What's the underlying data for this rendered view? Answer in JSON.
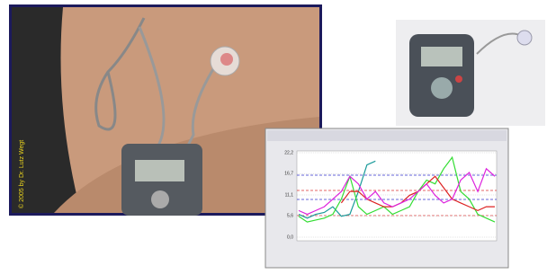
{
  "photo_caption": "© 2005 by Dr. Lutz Wegt",
  "chart_data": {
    "type": "line",
    "categories": [
      null,
      null,
      null,
      null,
      null,
      null,
      null,
      null,
      null,
      null,
      null,
      null,
      null,
      null,
      null,
      null,
      null,
      null,
      null,
      null,
      null,
      null,
      null,
      null
    ],
    "series": [
      {
        "color": "#1a9a9a",
        "values": [
          6,
          5,
          6,
          6.5,
          8,
          5.5,
          6,
          12,
          19,
          20,
          null,
          null,
          null,
          null,
          null,
          null,
          null,
          null,
          null,
          null,
          null,
          null,
          null,
          null
        ]
      },
      {
        "color": "#33dd33",
        "values": [
          5.5,
          4,
          4.5,
          5,
          6,
          10,
          16,
          8,
          6,
          7,
          8,
          6,
          7,
          8,
          12,
          15,
          14,
          18,
          21,
          12,
          10,
          6,
          5,
          4
        ]
      },
      {
        "color": "#dd2222",
        "values": [
          null,
          null,
          null,
          null,
          null,
          9,
          12,
          12,
          10,
          9,
          8,
          8,
          9,
          11,
          12,
          14,
          16,
          13,
          10,
          9,
          8,
          7,
          8,
          8
        ]
      },
      {
        "color": "#dd22dd",
        "values": [
          7,
          6,
          7,
          8,
          10,
          12,
          16,
          14,
          10,
          12,
          9,
          8,
          9,
          10,
          12,
          14,
          11,
          9,
          10,
          15,
          17,
          12,
          18,
          16
        ]
      }
    ],
    "ylim": [
      0,
      22.2
    ],
    "yticks": [
      {
        "value": 0,
        "label": "0,0"
      },
      {
        "value": 5.6,
        "label": "5,6"
      },
      {
        "value": 11.1,
        "label": "11,1"
      },
      {
        "value": 16.7,
        "label": "16,7"
      },
      {
        "value": 22.2,
        "label": "22,2"
      }
    ],
    "grid": true
  }
}
